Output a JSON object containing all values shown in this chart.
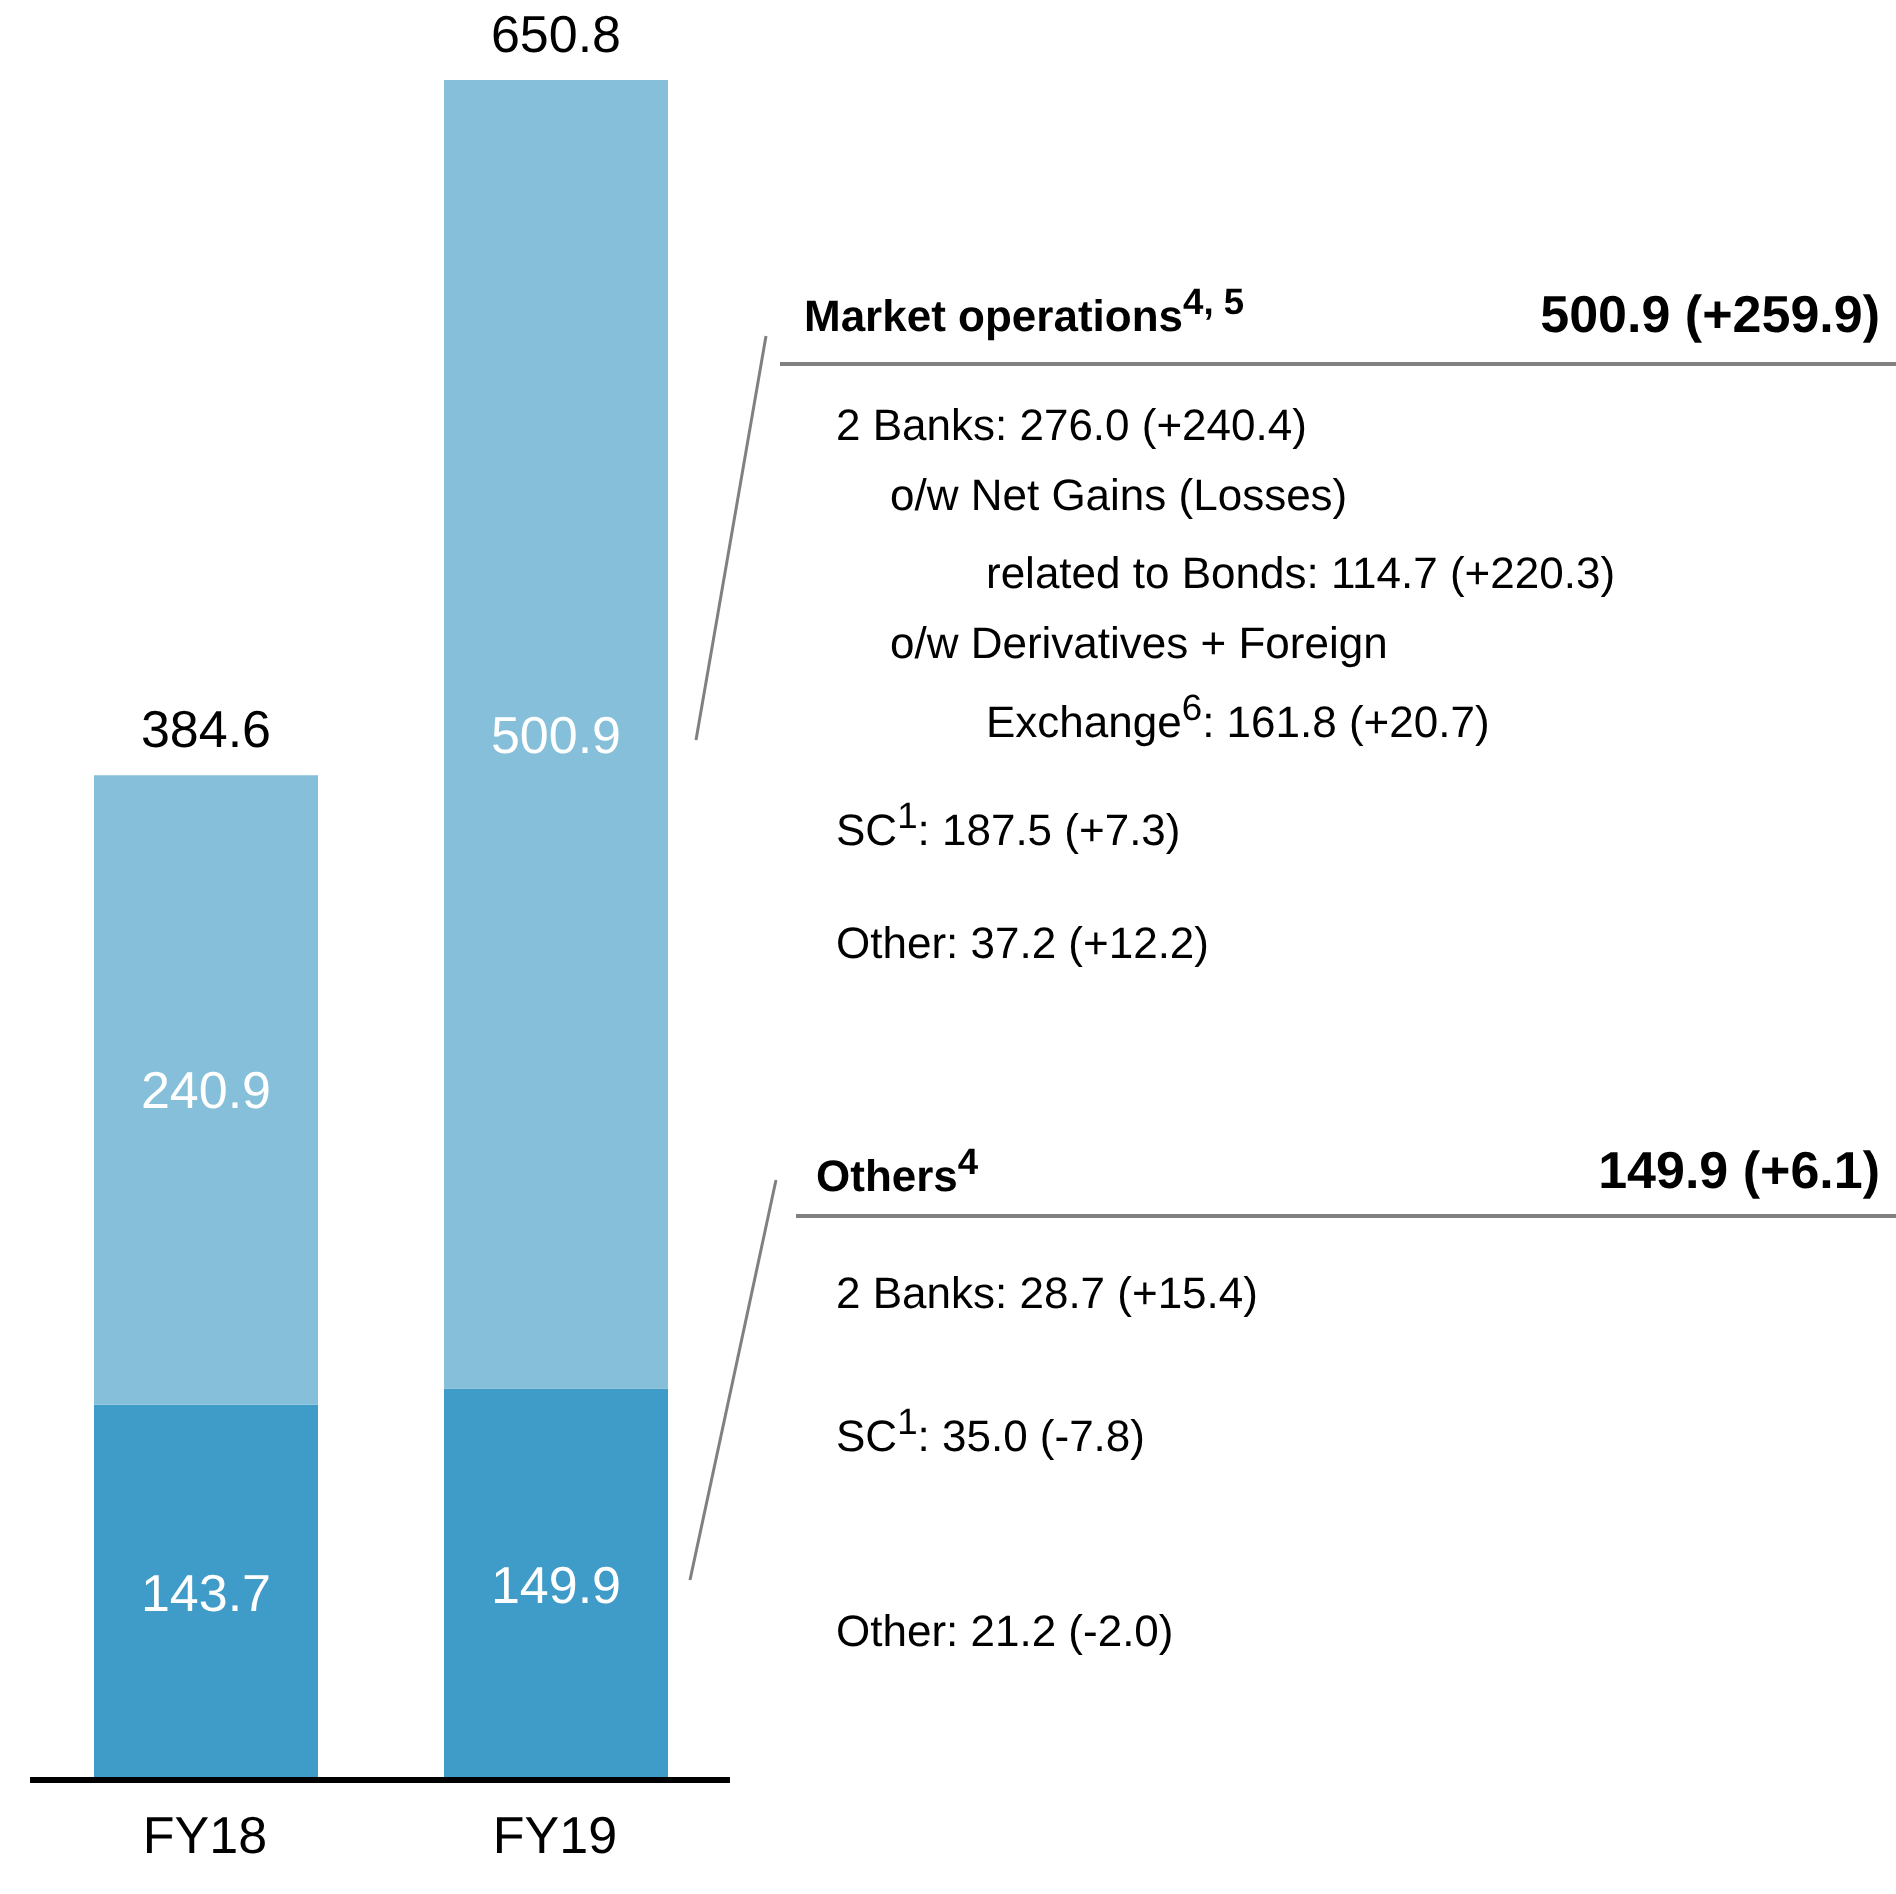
{
  "chart_data": {
    "type": "bar",
    "stacked": true,
    "data_labels": true,
    "categories": [
      "FY18",
      "FY19"
    ],
    "series": [
      {
        "color": "#3f9bc8",
        "values": [
          143.7,
          149.9
        ]
      },
      {
        "color": "#85bfd9",
        "values": [
          240.9,
          500.9
        ]
      }
    ],
    "totals": [
      "384.6",
      "650.8"
    ],
    "annotations": [
      "Market operations$^{4, 5}$",
      "500.9 (+259.9)",
      "2 Banks: 276.0 (+240.4)",
      "o/w Net Gains (Losses)",
      "related to Bonds: 114.7 (+220.3)",
      "o/w Derivatives + Foreign",
      "Exchange$^{6}$: 161.8 (+20.7)",
      "SC$^{1}$: 187.5 (+7.3)",
      "Other: 37.2 (+12.2)",
      "Others$^{4}$",
      "149.9 (+6.1)",
      "2 Banks: 28.7 (+15.4)",
      "SC$^{1}$: 35.0 (-7.8)",
      "Other: 21.2 (-2.0)"
    ]
  }
}
